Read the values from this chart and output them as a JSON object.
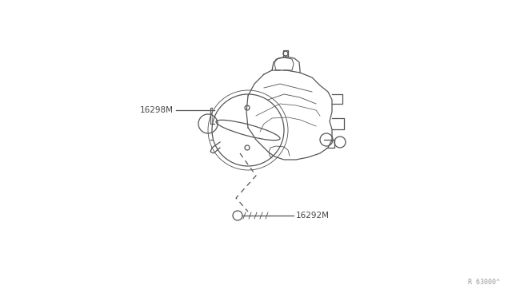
{
  "bg_color": "#ffffff",
  "line_color": "#555555",
  "label_color": "#444444",
  "label_16298M": "16298M",
  "label_16292M": "16292M",
  "watermark": "R 63000^"
}
